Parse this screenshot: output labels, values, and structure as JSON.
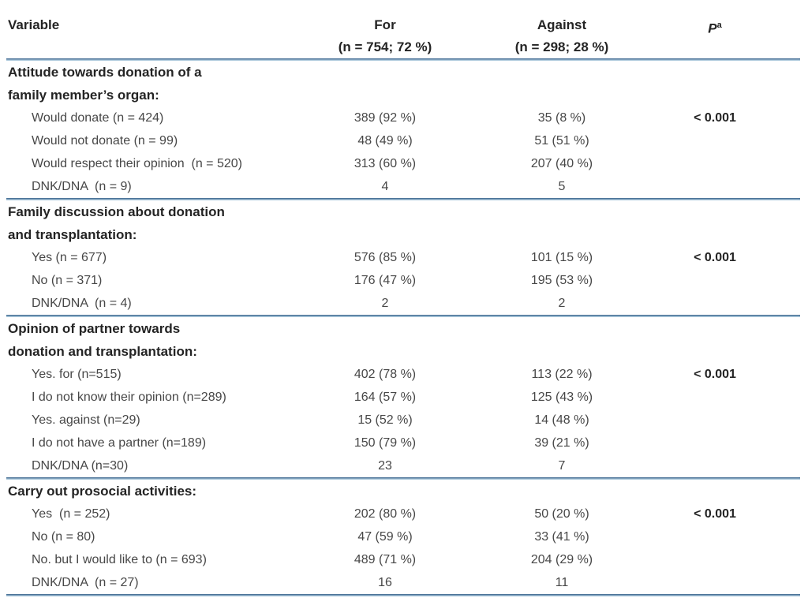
{
  "colors": {
    "rule": "#4d7499",
    "rule_light": "#abc8db",
    "text": "#474747",
    "heading_text": "#242424",
    "background": "#ffffff"
  },
  "table": {
    "header": {
      "variable_label": "Variable",
      "for": {
        "line1": "For",
        "line2": "(n = 754; 72 %)"
      },
      "against": {
        "line1": "Against",
        "line2": "(n = 298; 28 %)"
      },
      "p_label": "P",
      "p_superscript": "a"
    },
    "sections": [
      {
        "header_lines": [
          "Attitude towards donation of a",
          "family member’s organ:"
        ],
        "rows": [
          {
            "label": "Would donate (n = 424)",
            "for": "389 (92 %)",
            "against": "35 (8 %)",
            "p": "< 0.001"
          },
          {
            "label": "Would not donate (n = 99)",
            "for": "48 (49 %)",
            "against": "51 (51 %)",
            "p": ""
          },
          {
            "label": "Would respect their opinion  (n = 520)",
            "for": "313 (60 %)",
            "against": "207 (40 %)",
            "p": ""
          },
          {
            "label": "DNK/DNA  (n = 9)",
            "for": "4",
            "against": "5",
            "p": ""
          }
        ]
      },
      {
        "header_lines": [
          "Family discussion about donation",
          "and transplantation:"
        ],
        "rows": [
          {
            "label": "Yes (n = 677)",
            "for": "576 (85 %)",
            "against": "101 (15 %)",
            "p": "< 0.001"
          },
          {
            "label": "No (n = 371)",
            "for": "176 (47 %)",
            "against": "195 (53 %)",
            "p": ""
          },
          {
            "label": "DNK/DNA  (n = 4)",
            "for": "2",
            "against": "2",
            "p": ""
          }
        ]
      },
      {
        "header_lines": [
          "Opinion of partner towards",
          "donation and transplantation:"
        ],
        "rows": [
          {
            "label": "Yes. for (n=515)",
            "for": "402 (78 %)",
            "against": "113 (22 %)",
            "p": "< 0.001"
          },
          {
            "label": "I do not know their opinion (n=289)",
            "for": "164 (57 %)",
            "against": "125 (43 %)",
            "p": ""
          },
          {
            "label": "Yes. against (n=29)",
            "for": "15 (52 %)",
            "against": "14 (48 %)",
            "p": ""
          },
          {
            "label": "I do not have a partner (n=189)",
            "for": "150 (79 %)",
            "against": "39 (21 %)",
            "p": ""
          },
          {
            "label": "DNK/DNA (n=30)",
            "for": "23",
            "against": "7",
            "p": ""
          }
        ]
      },
      {
        "header_lines": [
          "Carry out prosocial activities:"
        ],
        "rows": [
          {
            "label": "Yes  (n = 252)",
            "for": "202 (80 %)",
            "against": "50 (20 %)",
            "p": "< 0.001"
          },
          {
            "label": "No (n = 80)",
            "for": "47 (59 %)",
            "against": "33 (41 %)",
            "p": ""
          },
          {
            "label": "No. but I would like to (n = 693)",
            "for": "489 (71 %)",
            "against": "204 (29 %)",
            "p": ""
          },
          {
            "label": "DNK/DNA  (n = 27)",
            "for": "16",
            "against": "11",
            "p": ""
          }
        ]
      }
    ]
  }
}
